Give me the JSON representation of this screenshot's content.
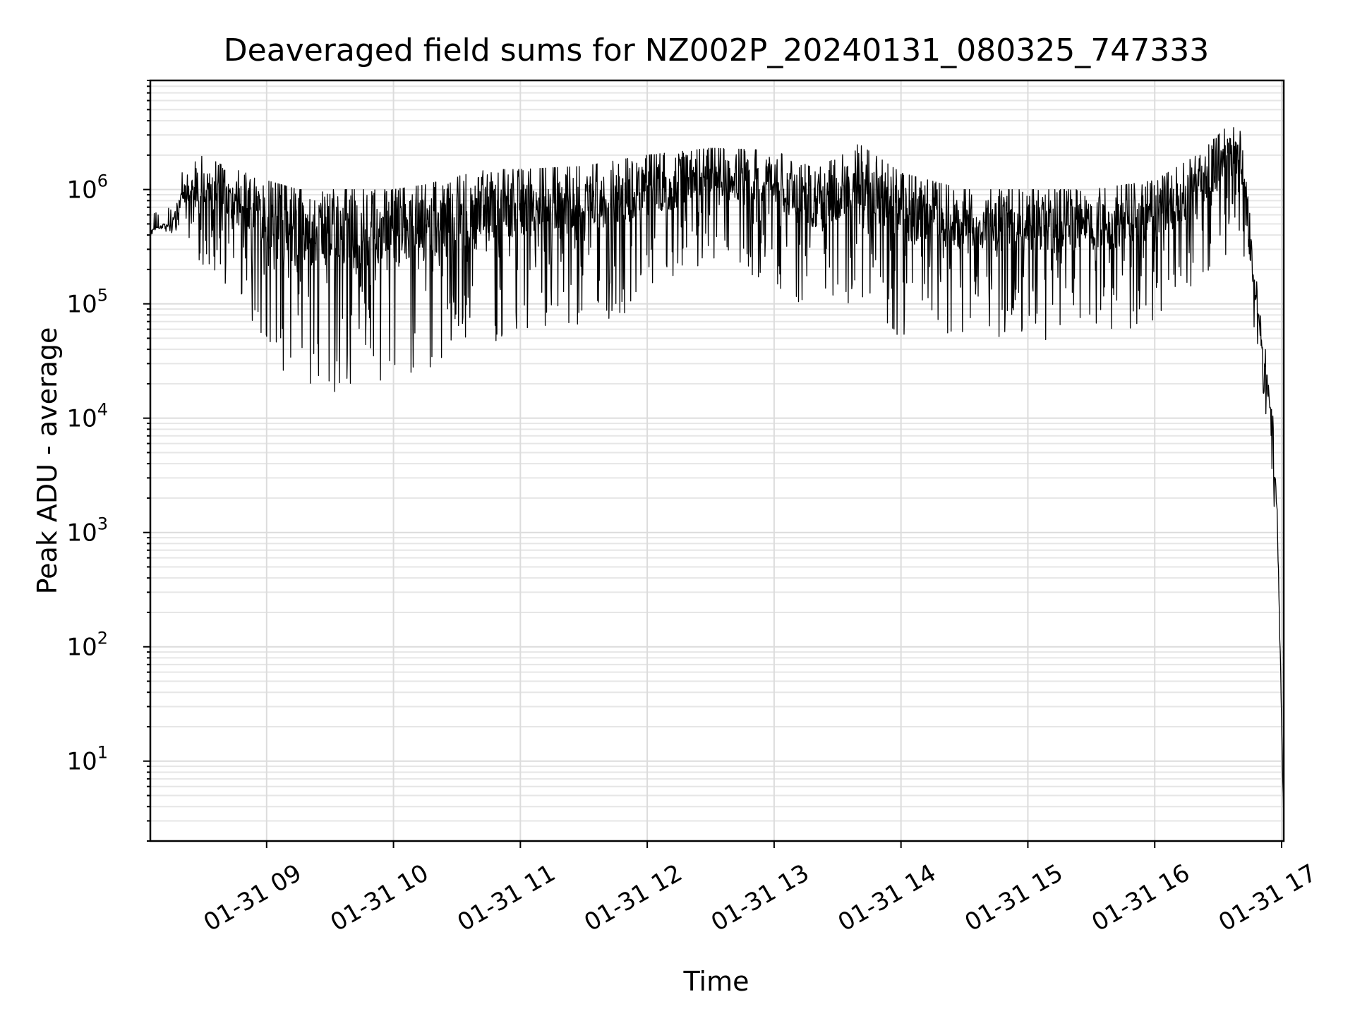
{
  "chart_data": {
    "type": "line",
    "title": "Deaveraged field sums for NZ002P_20240131_080325_747333",
    "xlabel": "Time",
    "ylabel": "Peak ADU - average",
    "yscale": "log",
    "ylim": [
      2,
      9000000
    ],
    "xlim": [
      "2024-01-31 08:05",
      "2024-01-31 17:01"
    ],
    "grid": true,
    "x_ticks": [
      {
        "value": "2024-01-31 09:00",
        "label": "01-31 09"
      },
      {
        "value": "2024-01-31 10:00",
        "label": "01-31 10"
      },
      {
        "value": "2024-01-31 11:00",
        "label": "01-31 11"
      },
      {
        "value": "2024-01-31 12:00",
        "label": "01-31 12"
      },
      {
        "value": "2024-01-31 13:00",
        "label": "01-31 13"
      },
      {
        "value": "2024-01-31 14:00",
        "label": "01-31 14"
      },
      {
        "value": "2024-01-31 15:00",
        "label": "01-31 15"
      },
      {
        "value": "2024-01-31 16:00",
        "label": "01-31 16"
      },
      {
        "value": "2024-01-31 17:00",
        "label": "01-31 17"
      }
    ],
    "y_ticks": [
      {
        "value": 10,
        "base": "10",
        "exp": "1"
      },
      {
        "value": 100,
        "base": "10",
        "exp": "2"
      },
      {
        "value": 1000,
        "base": "10",
        "exp": "3"
      },
      {
        "value": 10000,
        "base": "10",
        "exp": "4"
      },
      {
        "value": 100000,
        "base": "10",
        "exp": "5"
      },
      {
        "value": 1000000,
        "base": "10",
        "exp": "6"
      }
    ],
    "series": [
      {
        "color": "#000000",
        "envelope": [
          {
            "x": "2024-01-31 08:05",
            "upper": 600000,
            "lower": 400000
          },
          {
            "x": "2024-01-31 08:15",
            "upper": 700000,
            "lower": 400000
          },
          {
            "x": "2024-01-31 08:20",
            "upper": 1400000,
            "lower": 500000
          },
          {
            "x": "2024-01-31 08:30",
            "upper": 2000000,
            "lower": 200000
          },
          {
            "x": "2024-01-31 08:40",
            "upper": 1600000,
            "lower": 150000
          },
          {
            "x": "2024-01-31 08:50",
            "upper": 1400000,
            "lower": 80000
          },
          {
            "x": "2024-01-31 09:00",
            "upper": 1200000,
            "lower": 30000
          },
          {
            "x": "2024-01-31 09:15",
            "upper": 1000000,
            "lower": 17000
          },
          {
            "x": "2024-01-31 09:30",
            "upper": 1000000,
            "lower": 14000
          },
          {
            "x": "2024-01-31 09:45",
            "upper": 1000000,
            "lower": 17000
          },
          {
            "x": "2024-01-31 10:00",
            "upper": 1000000,
            "lower": 20000
          },
          {
            "x": "2024-01-31 10:15",
            "upper": 1100000,
            "lower": 25000
          },
          {
            "x": "2024-01-31 10:30",
            "upper": 1300000,
            "lower": 35000
          },
          {
            "x": "2024-01-31 10:45",
            "upper": 1500000,
            "lower": 45000
          },
          {
            "x": "2024-01-31 11:00",
            "upper": 1500000,
            "lower": 50000
          },
          {
            "x": "2024-01-31 11:30",
            "upper": 1600000,
            "lower": 60000
          },
          {
            "x": "2024-01-31 12:00",
            "upper": 2000000,
            "lower": 100000
          },
          {
            "x": "2024-01-31 12:30",
            "upper": 2300000,
            "lower": 200000
          },
          {
            "x": "2024-01-31 13:00",
            "upper": 2200000,
            "lower": 150000
          },
          {
            "x": "2024-01-31 13:20",
            "upper": 1500000,
            "lower": 70000
          },
          {
            "x": "2024-01-31 13:40",
            "upper": 2500000,
            "lower": 100000
          },
          {
            "x": "2024-01-31 14:00",
            "upper": 1400000,
            "lower": 50000
          },
          {
            "x": "2024-01-31 14:30",
            "upper": 1000000,
            "lower": 50000
          },
          {
            "x": "2024-01-31 15:00",
            "upper": 1000000,
            "lower": 50000
          },
          {
            "x": "2024-01-31 15:30",
            "upper": 1000000,
            "lower": 45000
          },
          {
            "x": "2024-01-31 16:00",
            "upper": 1200000,
            "lower": 60000
          },
          {
            "x": "2024-01-31 16:20",
            "upper": 2000000,
            "lower": 150000
          },
          {
            "x": "2024-01-31 16:40",
            "upper": 4500000,
            "lower": 300000
          },
          {
            "x": "2024-01-31 16:50",
            "upper": 80000,
            "lower": 20000
          },
          {
            "x": "2024-01-31 16:55",
            "upper": 20000,
            "lower": 5000
          },
          {
            "x": "2024-01-31 16:58",
            "upper": 2000,
            "lower": 500
          },
          {
            "x": "2024-01-31 17:01",
            "upper": 4,
            "lower": 3
          }
        ]
      }
    ]
  }
}
